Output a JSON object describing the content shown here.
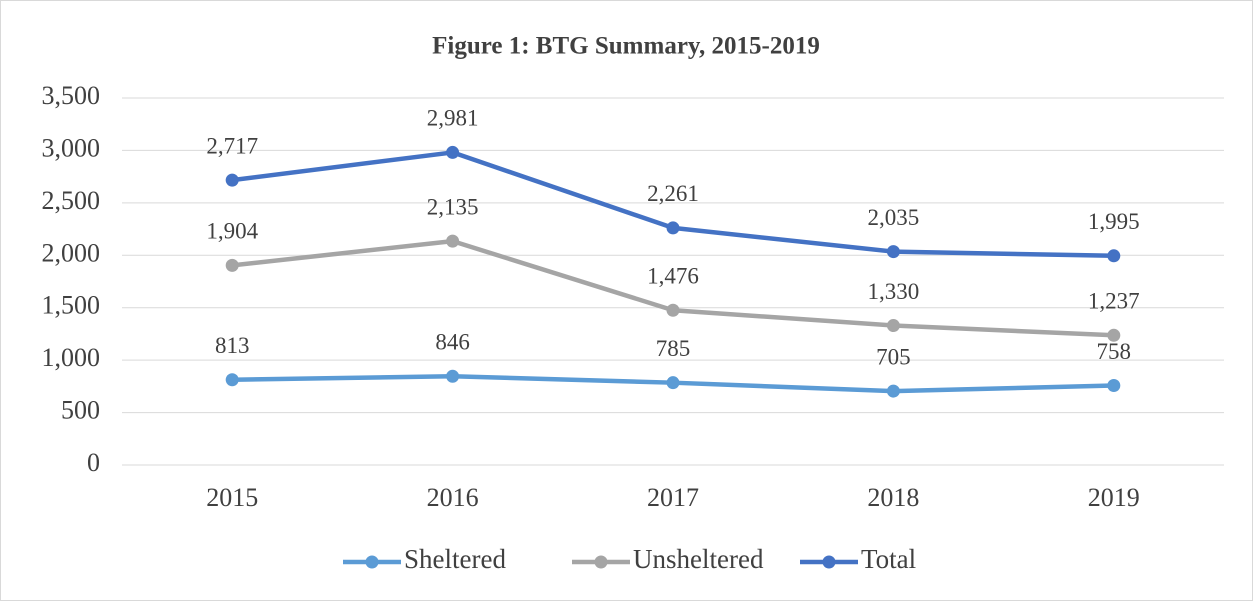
{
  "chart_data": {
    "type": "line",
    "title": "Figure 1: BTG Summary, 2015-2019",
    "categories": [
      "2015",
      "2016",
      "2017",
      "2018",
      "2019"
    ],
    "series": [
      {
        "name": "Sheltered",
        "color": "#5b9bd5",
        "values": [
          813,
          846,
          785,
          705,
          758
        ],
        "value_labels": [
          "813",
          "846",
          "785",
          "705",
          "758"
        ]
      },
      {
        "name": "Unsheltered",
        "color": "#a5a5a5",
        "values": [
          1904,
          2135,
          1476,
          1330,
          1237
        ],
        "value_labels": [
          "1,904",
          "2,135",
          "1,476",
          "1,330",
          "1,237"
        ]
      },
      {
        "name": "Total",
        "color": "#4472c4",
        "values": [
          2717,
          2981,
          2261,
          2035,
          1995
        ],
        "value_labels": [
          "2,717",
          "2,981",
          "2,261",
          "2,035",
          "1,995"
        ]
      }
    ],
    "ylim": [
      0,
      3500
    ],
    "yticks": [
      0,
      500,
      {
        "value": 1000,
        "label": "1,000"
      },
      {
        "value": 1500,
        "label": "1,500"
      },
      {
        "value": 2000,
        "label": "2,000"
      },
      {
        "value": 2500,
        "label": "2,500"
      },
      {
        "value": 3000,
        "label": "3,000"
      },
      {
        "value": 3500,
        "label": "3,500"
      }
    ],
    "grid": true,
    "legend": "bottom"
  }
}
